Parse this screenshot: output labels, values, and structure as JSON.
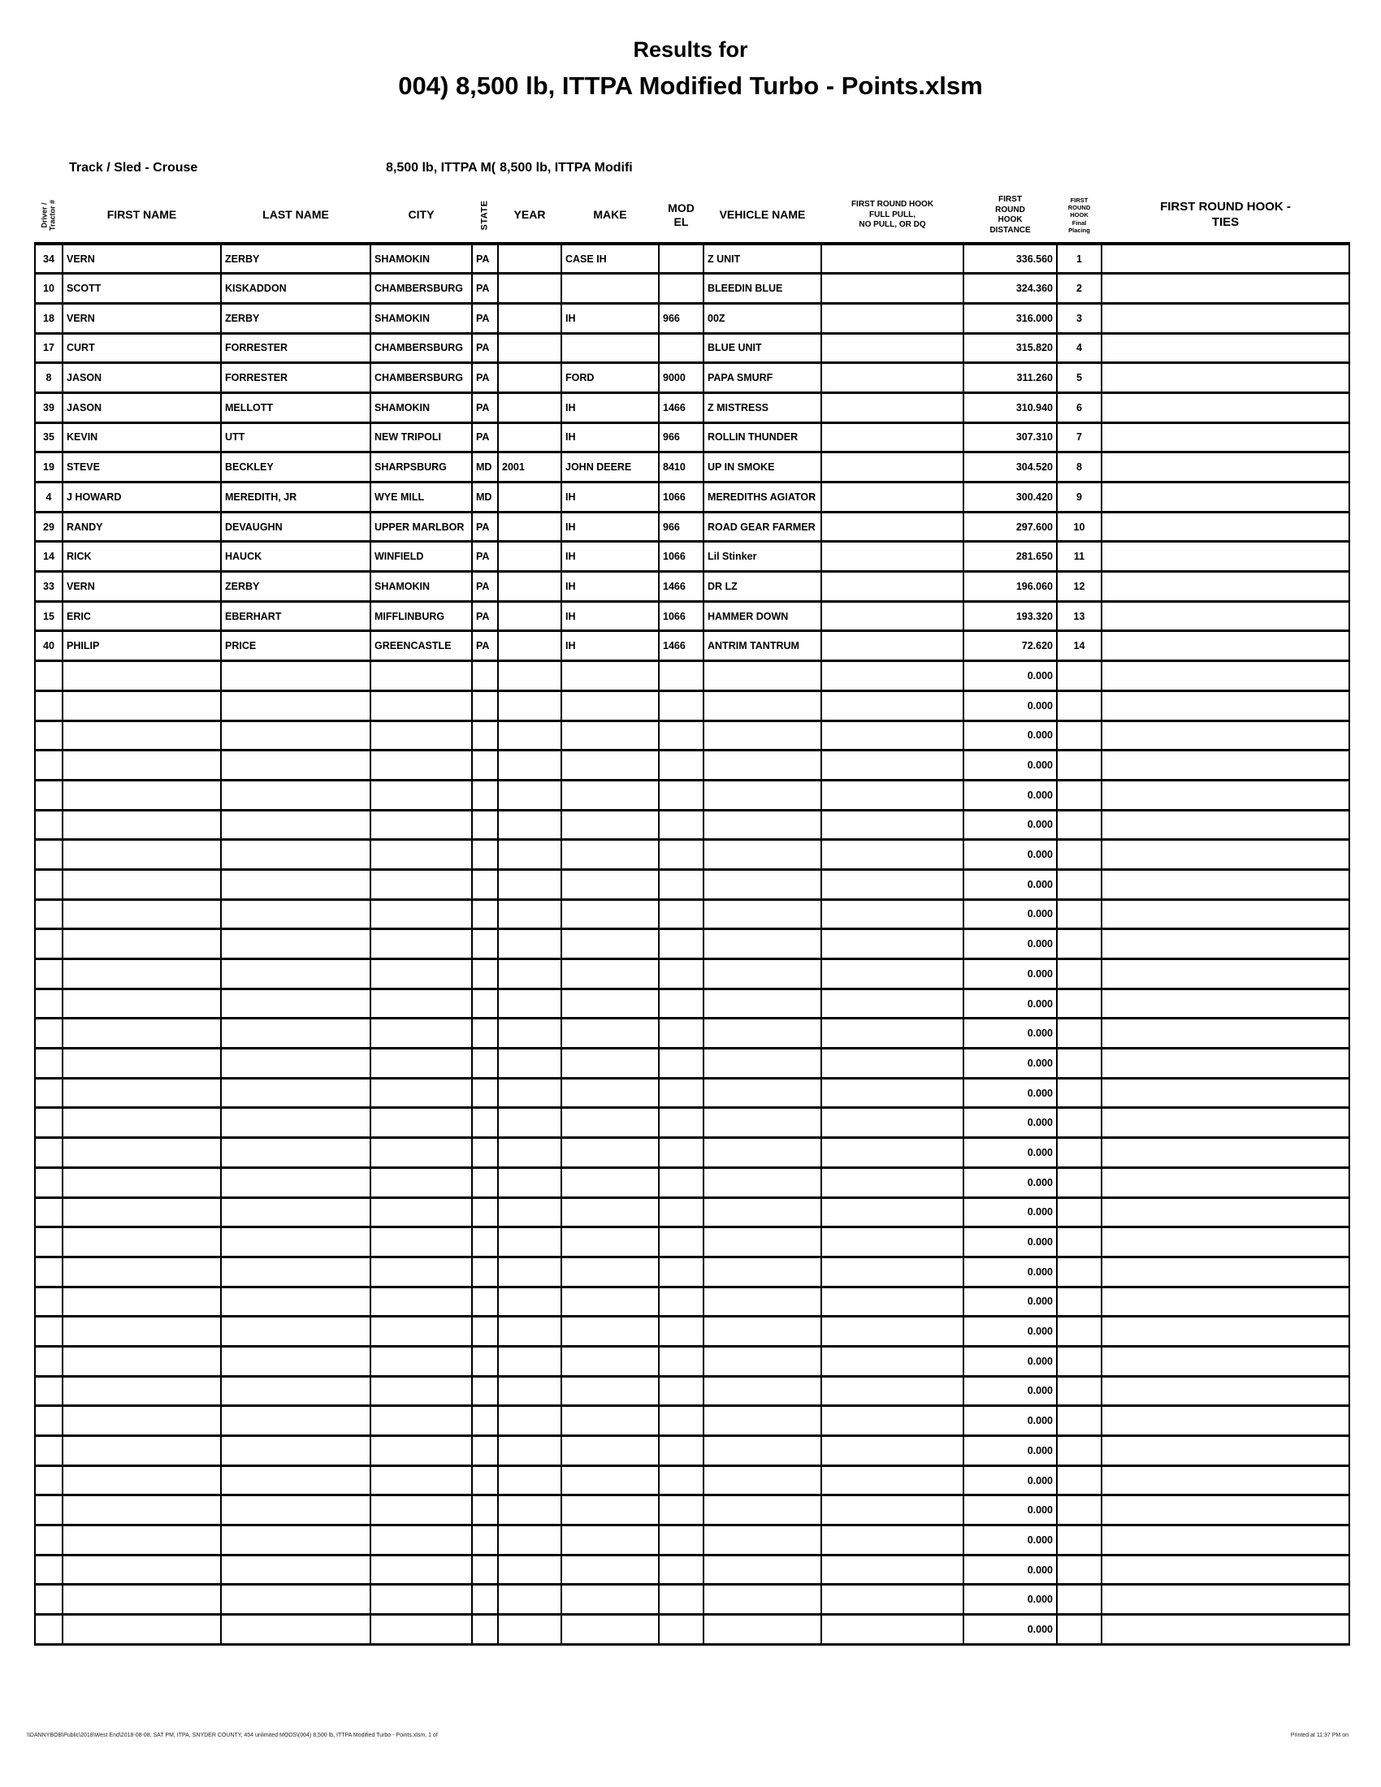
{
  "title": {
    "line1": "Results for",
    "line2": "004) 8,500 lb, ITTPA Modified Turbo - Points.xlsm"
  },
  "meta": {
    "track_sled": "Track / Sled - Crouse",
    "class_label_1": "8,500 lb, ITTPA M(",
    "class_label_2": "8,500 lb, ITTPA Modifi"
  },
  "table": {
    "headers": {
      "driver_tractor": "Driver /\nTractor #",
      "first_name": "FIRST NAME",
      "last_name": "LAST NAME",
      "city": "CITY",
      "state": "STATE",
      "year": "YEAR",
      "make": "MAKE",
      "model": "MOD\nEL",
      "vehicle_name": "VEHICLE NAME",
      "full_pull": "FIRST ROUND HOOK\nFULL PULL,\nNO PULL, OR DQ",
      "distance": "FIRST\nROUND\nHOOK\nDISTANCE",
      "placing": "FIRST\nROUND\nHOOK\nFinal\nPlacing",
      "ties": "FIRST ROUND HOOK -\nTIES"
    },
    "rows": [
      {
        "num": "34",
        "first": "VERN",
        "last": "ZERBY",
        "city": "SHAMOKIN",
        "state": "PA",
        "year": "",
        "make": "CASE IH",
        "model": "",
        "vehicle": "Z UNIT",
        "full_pull": "",
        "distance": "336.560",
        "placing": "1",
        "ties": ""
      },
      {
        "num": "10",
        "first": "SCOTT",
        "last": "KISKADDON",
        "city": "CHAMBERSBURG",
        "state": "PA",
        "year": "",
        "make": "",
        "model": "",
        "vehicle": "BLEEDIN BLUE",
        "full_pull": "",
        "distance": "324.360",
        "placing": "2",
        "ties": ""
      },
      {
        "num": "18",
        "first": "VERN",
        "last": "ZERBY",
        "city": "SHAMOKIN",
        "state": "PA",
        "year": "",
        "make": "IH",
        "model": "966",
        "vehicle": "00Z",
        "full_pull": "",
        "distance": "316.000",
        "placing": "3",
        "ties": ""
      },
      {
        "num": "17",
        "first": "CURT",
        "last": "FORRESTER",
        "city": "CHAMBERSBURG",
        "state": "PA",
        "year": "",
        "make": "",
        "model": "",
        "vehicle": "BLUE UNIT",
        "full_pull": "",
        "distance": "315.820",
        "placing": "4",
        "ties": ""
      },
      {
        "num": "8",
        "first": "JASON",
        "last": "FORRESTER",
        "city": "CHAMBERSBURG",
        "state": "PA",
        "year": "",
        "make": "FORD",
        "model": "9000",
        "vehicle": "PAPA SMURF",
        "full_pull": "",
        "distance": "311.260",
        "placing": "5",
        "ties": ""
      },
      {
        "num": "39",
        "first": "JASON",
        "last": "MELLOTT",
        "city": "SHAMOKIN",
        "state": "PA",
        "year": "",
        "make": "IH",
        "model": "1466",
        "vehicle": "Z MISTRESS",
        "full_pull": "",
        "distance": "310.940",
        "placing": "6",
        "ties": ""
      },
      {
        "num": "35",
        "first": "KEVIN",
        "last": "UTT",
        "city": "NEW TRIPOLI",
        "state": "PA",
        "year": "",
        "make": "IH",
        "model": "966",
        "vehicle": "ROLLIN THUNDER",
        "full_pull": "",
        "distance": "307.310",
        "placing": "7",
        "ties": ""
      },
      {
        "num": "19",
        "first": "STEVE",
        "last": "BECKLEY",
        "city": "SHARPSBURG",
        "state": "MD",
        "year": "2001",
        "make": "JOHN DEERE",
        "model": "8410",
        "vehicle": "UP IN SMOKE",
        "full_pull": "",
        "distance": "304.520",
        "placing": "8",
        "ties": ""
      },
      {
        "num": "4",
        "first": "J HOWARD",
        "last": "MEREDITH, JR",
        "city": "WYE MILL",
        "state": "MD",
        "year": "",
        "make": "IH",
        "model": "1066",
        "vehicle": "MEREDITHS AGIATOR",
        "full_pull": "",
        "distance": "300.420",
        "placing": "9",
        "ties": ""
      },
      {
        "num": "29",
        "first": "RANDY",
        "last": "DEVAUGHN",
        "city": "UPPER MARLBOR",
        "state": "PA",
        "year": "",
        "make": "IH",
        "model": "966",
        "vehicle": "ROAD GEAR FARMER",
        "full_pull": "",
        "distance": "297.600",
        "placing": "10",
        "ties": ""
      },
      {
        "num": "14",
        "first": "RICK",
        "last": "HAUCK",
        "city": "WINFIELD",
        "state": "PA",
        "year": "",
        "make": "IH",
        "model": "1066",
        "vehicle": "Lil Stinker",
        "full_pull": "",
        "distance": "281.650",
        "placing": "11",
        "ties": ""
      },
      {
        "num": "33",
        "first": "VERN",
        "last": "ZERBY",
        "city": "SHAMOKIN",
        "state": "PA",
        "year": "",
        "make": "IH",
        "model": "1466",
        "vehicle": "DR LZ",
        "full_pull": "",
        "distance": "196.060",
        "placing": "12",
        "ties": ""
      },
      {
        "num": "15",
        "first": "ERIC",
        "last": "EBERHART",
        "city": "MIFFLINBURG",
        "state": "PA",
        "year": "",
        "make": "IH",
        "model": "1066",
        "vehicle": "HAMMER DOWN",
        "full_pull": "",
        "distance": "193.320",
        "placing": "13",
        "ties": ""
      },
      {
        "num": "40",
        "first": "PHILIP",
        "last": "PRICE",
        "city": "GREENCASTLE",
        "state": "PA",
        "year": "",
        "make": "IH",
        "model": "1466",
        "vehicle": "ANTRIM TANTRUM",
        "full_pull": "",
        "distance": "72.620",
        "placing": "14",
        "ties": ""
      }
    ],
    "empty_row_count": 33,
    "empty_row_distance": "0.000"
  },
  "footer": {
    "left": "\\\\DANNYBOB\\Public\\2018\\West End\\2018-08-08, SAT PM, ITPA, SNYDER COUNTY, 454 unlimited MODS\\(004) 8,500 lb, ITTPA Modified Turbo - Points.xlsm,  1 of",
    "right": "Printed at 11:37 PM on"
  }
}
